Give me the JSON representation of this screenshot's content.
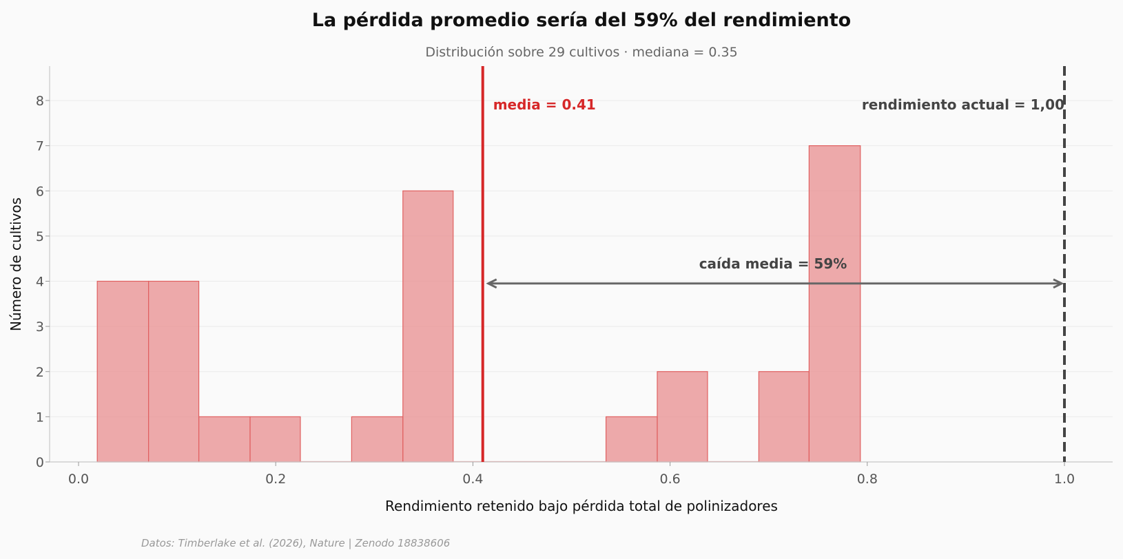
{
  "chart_data": {
    "type": "bar",
    "title": "La pérdida promedio sería del 59% del rendimiento",
    "subtitle": "Distribución sobre 29 cultivos · mediana = 0.35",
    "xlabel": "Rendimiento retenido bajo pérdida total de polinizadores",
    "ylabel": "Número de cultivos",
    "xlim": [
      -0.03,
      1.05
    ],
    "ylim": [
      0,
      8.8
    ],
    "x_ticks": [
      "0.0",
      "0.2",
      "0.4",
      "0.6",
      "0.8",
      "1.0"
    ],
    "y_ticks": [
      "0",
      "1",
      "2",
      "3",
      "4",
      "5",
      "6",
      "7",
      "8"
    ],
    "grid": "horizontal",
    "bar_color": "#e8898a",
    "bins": [
      {
        "x0": 0.019,
        "x1": 0.071,
        "count": 4
      },
      {
        "x0": 0.071,
        "x1": 0.122,
        "count": 4
      },
      {
        "x0": 0.122,
        "x1": 0.174,
        "count": 1
      },
      {
        "x0": 0.174,
        "x1": 0.225,
        "count": 1
      },
      {
        "x0": 0.225,
        "x1": 0.277,
        "count": 0
      },
      {
        "x0": 0.277,
        "x1": 0.329,
        "count": 1
      },
      {
        "x0": 0.329,
        "x1": 0.38,
        "count": 6
      },
      {
        "x0": 0.38,
        "x1": 0.432,
        "count": 0
      },
      {
        "x0": 0.432,
        "x1": 0.483,
        "count": 0
      },
      {
        "x0": 0.483,
        "x1": 0.535,
        "count": 0
      },
      {
        "x0": 0.535,
        "x1": 0.587,
        "count": 1
      },
      {
        "x0": 0.587,
        "x1": 0.638,
        "count": 2
      },
      {
        "x0": 0.638,
        "x1": 0.69,
        "count": 0
      },
      {
        "x0": 0.69,
        "x1": 0.741,
        "count": 2
      },
      {
        "x0": 0.741,
        "x1": 0.793,
        "count": 7
      }
    ],
    "mean": {
      "value": 0.41,
      "label": "media = 0.41",
      "color": "#d62728"
    },
    "reference": {
      "value": 1.0,
      "label": "rendimiento actual = 1,00",
      "color": "#444444"
    },
    "drop": {
      "from": 0.41,
      "to": 1.0,
      "y": 3.95,
      "label": "caída media = 59%"
    }
  },
  "footer": "Datos: Timberlake et al. (2026), Nature | Zenodo 18838606"
}
